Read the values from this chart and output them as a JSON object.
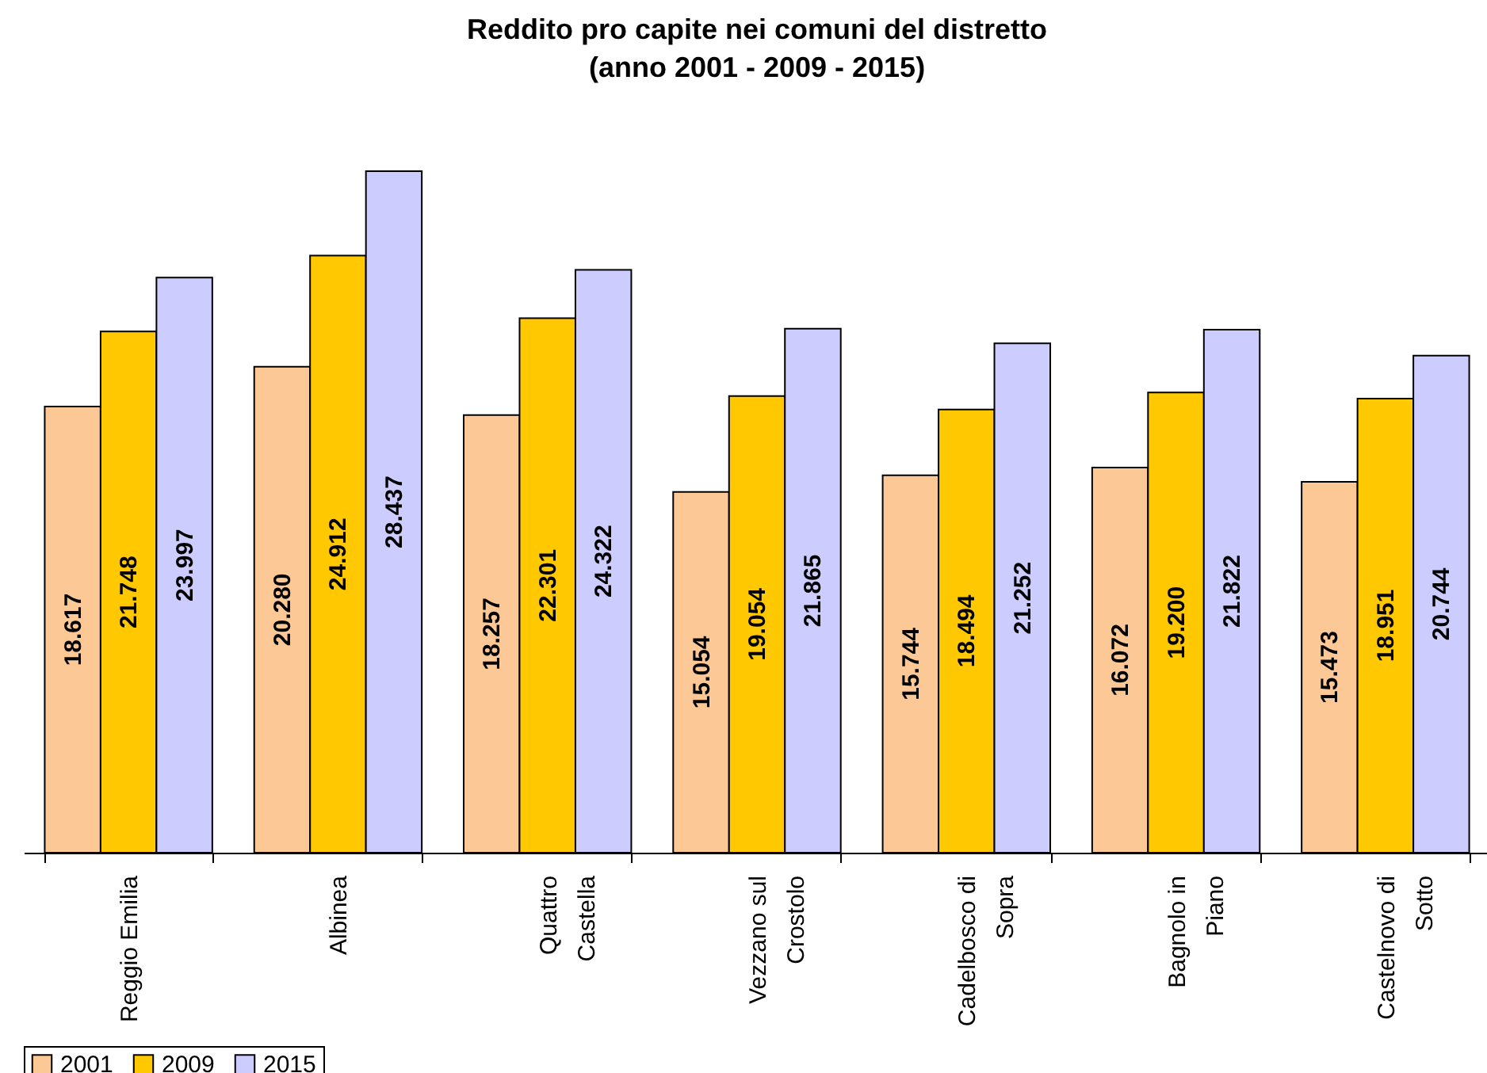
{
  "chart_data": {
    "type": "bar",
    "title": "Reddito pro capite nei comuni del distretto",
    "subtitle": "(anno 2001 - 2009 - 2015)",
    "categories": [
      "Reggio Emilia",
      "Albinea",
      "Quattro Castella",
      "Vezzano sul Crostolo",
      "Cadelbosco di Sopra",
      "Bagnolo in Piano",
      "Castelnovo di Sotto"
    ],
    "series": [
      {
        "name": "2001",
        "color": "#fcc896",
        "values": [
          18617,
          20280,
          18257,
          15054,
          15744,
          16072,
          15473
        ],
        "value_labels": [
          "18.617",
          "20.280",
          "18.257",
          "15.054",
          "15.744",
          "16.072",
          "15.473"
        ]
      },
      {
        "name": "2009",
        "color": "#ffc800",
        "values": [
          21748,
          24912,
          22301,
          19054,
          18494,
          19200,
          18951
        ],
        "value_labels": [
          "21.748",
          "24.912",
          "22.301",
          "19.054",
          "18.494",
          "19.200",
          "18.951"
        ]
      },
      {
        "name": "2015",
        "color": "#ccccff",
        "values": [
          23997,
          28437,
          24322,
          21865,
          21252,
          21822,
          20744
        ],
        "value_labels": [
          "23.997",
          "28.437",
          "24.322",
          "21.865",
          "21.252",
          "21.822",
          "20.744"
        ]
      }
    ],
    "legend": "bottom",
    "grid": false
  }
}
